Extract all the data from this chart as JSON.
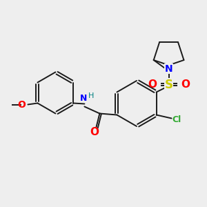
{
  "background_color": "#eeeeee",
  "bond_color": "#1a1a1a",
  "atom_colors": {
    "N": "#0000ff",
    "O": "#ff0000",
    "S": "#cccc00",
    "Cl": "#33aa33",
    "H": "#008080",
    "C": "#1a1a1a"
  },
  "figsize": [
    3.0,
    3.0
  ],
  "dpi": 100,
  "lw": 1.4
}
